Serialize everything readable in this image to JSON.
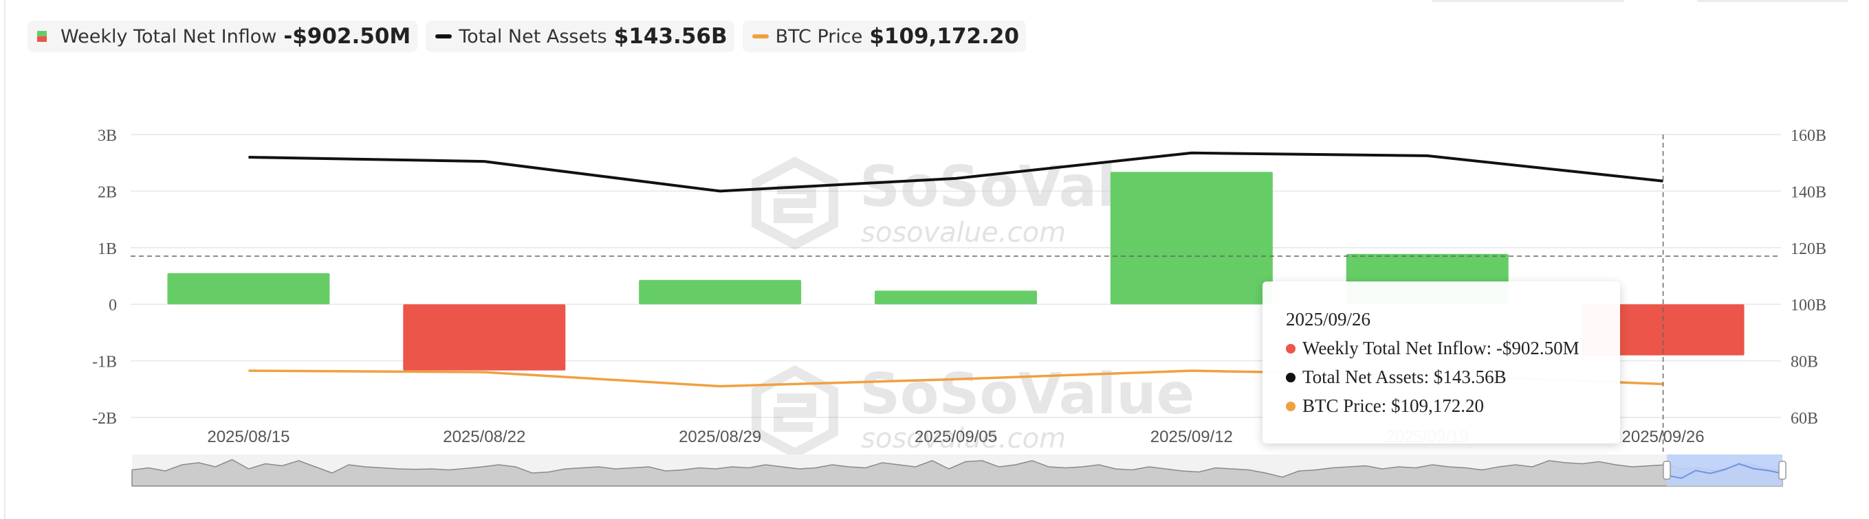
{
  "legend": {
    "inflow": {
      "label": "Weekly Total Net Inflow",
      "value": "-$902.50M"
    },
    "assets": {
      "label": "Total Net Assets",
      "value": "$143.56B"
    },
    "btc": {
      "label": "BTC Price",
      "value": "$109,172.20"
    }
  },
  "tooltip": {
    "date": "2025/09/26",
    "inflow": "Weekly Total Net Inflow: -$902.50M",
    "assets": "Total Net Assets: $143.56B",
    "btc": "BTC Price: $109,172.20"
  },
  "watermark": {
    "brand": "SoSoValue",
    "site": "sosovalue.com"
  },
  "colors": {
    "positive": "#66cd66",
    "negative": "#ec5549",
    "assets_line": "#111111",
    "btc_line": "#f0a040",
    "tooltip_inflow_dot": "#ec5549",
    "tooltip_assets_dot": "#111111",
    "tooltip_btc_dot": "#f0a040",
    "slider": "#bcd0f8"
  },
  "chart_data": {
    "type": "bar",
    "categories": [
      "2025/08/15",
      "2025/08/22",
      "2025/08/29",
      "2025/09/05",
      "2025/09/12",
      "2025/09/19",
      "2025/09/26"
    ],
    "left_ticks": [
      "3B",
      "2B",
      "1B",
      "0",
      "-1B",
      "-2B"
    ],
    "right_ticks": [
      "160B",
      "140B",
      "120B",
      "100B",
      "80B",
      "60B"
    ],
    "ylim_left": [
      -2,
      3
    ],
    "ylim_right": [
      60,
      160
    ],
    "series": [
      {
        "name": "Weekly Total Net Inflow",
        "type": "bar",
        "values": [
          0.55,
          -1.17,
          0.43,
          0.24,
          2.34,
          0.89,
          -0.9025
        ]
      },
      {
        "name": "Total Net Assets",
        "type": "line",
        "axis": "right",
        "values": [
          152,
          150.5,
          140,
          144.5,
          153.5,
          152.5,
          143.56
        ]
      },
      {
        "name": "BTC Price",
        "type": "line",
        "axis": "right",
        "values": [
          76.5,
          76,
          71,
          73.5,
          76.5,
          75,
          71.8
        ]
      }
    ],
    "crosshair_index": 6,
    "crosshair_left_value": 0.85,
    "navigator": [
      0.45,
      0.55,
      0.4,
      0.7,
      0.8,
      0.6,
      0.95,
      0.5,
      0.75,
      0.65,
      0.9,
      0.6,
      0.3,
      0.7,
      0.6,
      0.55,
      0.5,
      0.48,
      0.5,
      0.45,
      0.52,
      0.6,
      0.7,
      0.6,
      0.3,
      0.35,
      0.5,
      0.55,
      0.6,
      0.5,
      0.55,
      0.6,
      0.4,
      0.45,
      0.55,
      0.5,
      0.6,
      0.55,
      0.7,
      0.6,
      0.5,
      0.55,
      0.7,
      0.6,
      0.55,
      0.8,
      0.7,
      0.6,
      0.9,
      0.5,
      0.85,
      0.9,
      0.6,
      0.7,
      0.9,
      0.6,
      0.55,
      0.6,
      0.7,
      0.5,
      0.45,
      0.6,
      0.5,
      0.4,
      0.35,
      0.55,
      0.5,
      0.45,
      0.3,
      0.1,
      0.4,
      0.45,
      0.55,
      0.6,
      0.65,
      0.5,
      0.6,
      0.55,
      0.7,
      0.6,
      0.55,
      0.45,
      0.6,
      0.7,
      0.6,
      0.9,
      0.8,
      0.75,
      0.85,
      0.7,
      0.6,
      0.65,
      0.7,
      0.5,
      0.55,
      0.4,
      0.6,
      0.75,
      0.5,
      0.45
    ],
    "navigator_selected_points": [
      0.2,
      0.05,
      0.45,
      0.3,
      0.5,
      0.8,
      0.55,
      0.45,
      0.3
    ]
  }
}
